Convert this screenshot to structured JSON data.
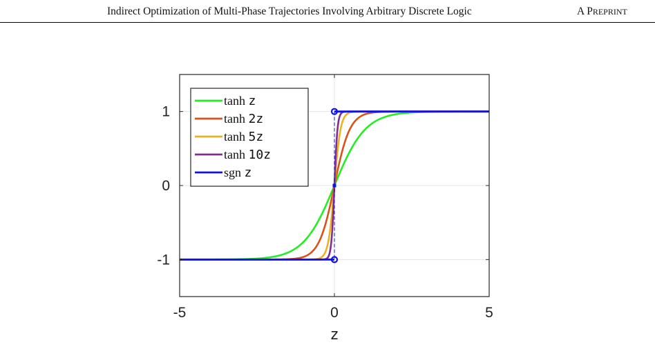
{
  "header": {
    "title": "Indirect Optimization of Multi-Phase Trajectories Involving Arbitrary Discrete Logic",
    "tag": "A PREPRINT"
  },
  "chart_data": {
    "type": "line",
    "title": "",
    "xlabel": "z",
    "ylabel": "",
    "xlim": [
      -5,
      5
    ],
    "ylim": [
      -1.5,
      1.5
    ],
    "xticks": [
      -5,
      0,
      5
    ],
    "yticks": [
      -1,
      0,
      1
    ],
    "xtick_labels": [
      "-5",
      "0",
      "5"
    ],
    "ytick_labels": [
      "-1",
      "0",
      "1"
    ],
    "grid": true,
    "legend_position": "top-left",
    "series": [
      {
        "fn": "tanh",
        "k": 1,
        "legend_fn": "tanh",
        "legend_arg": "z",
        "color": "#22ee22"
      },
      {
        "fn": "tanh",
        "k": 2,
        "legend_fn": "tanh",
        "legend_arg": "2z",
        "color": "#d95319"
      },
      {
        "fn": "tanh",
        "k": 5,
        "legend_fn": "tanh",
        "legend_arg": "5z",
        "color": "#edb120"
      },
      {
        "fn": "tanh",
        "k": 10,
        "legend_fn": "tanh",
        "legend_arg": "10z",
        "color": "#7e2f8e"
      },
      {
        "fn": "sgn",
        "k": 1,
        "legend_fn": "sgn",
        "legend_arg": "z",
        "color": "#1010e8"
      }
    ],
    "sgn_markers": [
      {
        "x": 0,
        "y": 1
      },
      {
        "x": 0,
        "y": -1
      }
    ]
  }
}
